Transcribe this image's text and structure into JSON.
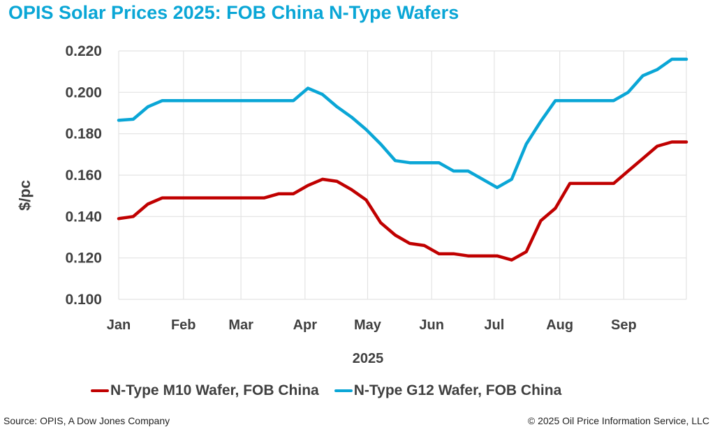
{
  "title": "OPIS Solar Prices 2025: FOB China N-Type Wafers",
  "footer": {
    "source": "Source: OPIS, A Dow Jones Company",
    "copyright": "© 2025 Oil Price Information Service, LLC"
  },
  "chart_data": {
    "type": "line",
    "title": "OPIS Solar Prices 2025: FOB China N-Type Wafers",
    "xlabel": "2025",
    "ylabel": "$/pc",
    "ylim": [
      0.1,
      0.22
    ],
    "yticks": [
      "0.100",
      "0.120",
      "0.140",
      "0.160",
      "0.180",
      "0.200",
      "0.220"
    ],
    "ytick_values": [
      0.1,
      0.12,
      0.14,
      0.16,
      0.18,
      0.2,
      0.22
    ],
    "xticks": [
      "Jan",
      "Feb",
      "Mar",
      "Apr",
      "May",
      "Jun",
      "Jul",
      "Aug",
      "Sep"
    ],
    "xtick_week_index": [
      0,
      4.45,
      8.4,
      12.8,
      17.1,
      21.5,
      25.8,
      30.3,
      34.7
    ],
    "x_unit": "weekly observations, Jan–Sep 2025",
    "grid": true,
    "legend_position": "bottom",
    "series": [
      {
        "name": "N-Type M10 Wafer, FOB China",
        "color": "#c00000",
        "values": [
          0.139,
          0.14,
          0.146,
          0.149,
          0.149,
          0.149,
          0.149,
          0.149,
          0.149,
          0.149,
          0.149,
          0.151,
          0.151,
          0.155,
          0.158,
          0.157,
          0.153,
          0.148,
          0.137,
          0.131,
          0.127,
          0.126,
          0.122,
          0.122,
          0.121,
          0.121,
          0.121,
          0.119,
          0.123,
          0.138,
          0.144,
          0.156,
          0.156,
          0.156,
          0.156,
          0.162,
          0.168,
          0.174,
          0.176,
          0.176
        ]
      },
      {
        "name": "N-Type G12 Wafer, FOB China",
        "color": "#0aa6d6",
        "values": [
          0.1865,
          0.187,
          0.193,
          0.196,
          0.196,
          0.196,
          0.196,
          0.196,
          0.196,
          0.196,
          0.196,
          0.196,
          0.196,
          0.202,
          0.199,
          0.193,
          0.188,
          0.182,
          0.175,
          0.167,
          0.166,
          0.166,
          0.166,
          0.162,
          0.162,
          0.158,
          0.154,
          0.158,
          0.175,
          0.186,
          0.196,
          0.196,
          0.196,
          0.196,
          0.196,
          0.2,
          0.208,
          0.211,
          0.216,
          0.216
        ]
      }
    ]
  }
}
